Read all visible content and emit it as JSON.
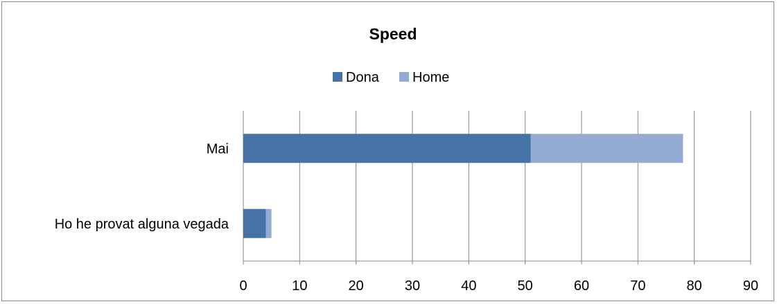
{
  "chart_data": {
    "type": "bar",
    "orientation": "horizontal",
    "stacked": true,
    "title": "Speed",
    "categories": [
      "Mai",
      "Ho he provat alguna vegada"
    ],
    "series": [
      {
        "name": "Dona",
        "color": "#4572a7",
        "values": [
          51,
          4
        ]
      },
      {
        "name": "Home",
        "color": "#94abd4",
        "values": [
          27,
          1
        ]
      }
    ],
    "xlim": [
      0,
      90
    ],
    "xticks": [
      0,
      10,
      20,
      30,
      40,
      50,
      60,
      70,
      80,
      90
    ],
    "xlabel": "",
    "ylabel": "",
    "grid": "vertical",
    "legend_position": "top"
  }
}
